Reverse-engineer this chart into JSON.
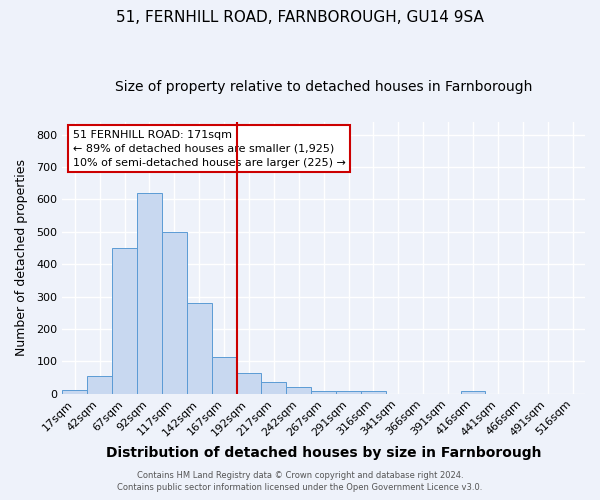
{
  "title": "51, FERNHILL ROAD, FARNBOROUGH, GU14 9SA",
  "subtitle": "Size of property relative to detached houses in Farnborough",
  "xlabel": "Distribution of detached houses by size in Farnborough",
  "ylabel": "Number of detached properties",
  "bin_labels": [
    "17sqm",
    "42sqm",
    "67sqm",
    "92sqm",
    "117sqm",
    "142sqm",
    "167sqm",
    "192sqm",
    "217sqm",
    "242sqm",
    "267sqm",
    "291sqm",
    "316sqm",
    "341sqm",
    "366sqm",
    "391sqm",
    "416sqm",
    "441sqm",
    "466sqm",
    "491sqm",
    "516sqm"
  ],
  "bar_heights": [
    12,
    55,
    450,
    620,
    500,
    280,
    115,
    65,
    38,
    22,
    10,
    8,
    8,
    0,
    0,
    0,
    8,
    0,
    0,
    0,
    0
  ],
  "bar_color": "#c8d8f0",
  "bar_edge_color": "#5b9bd5",
  "vline_color": "#cc0000",
  "annotation_lines": [
    "51 FERNHILL ROAD: 171sqm",
    "← 89% of detached houses are smaller (1,925)",
    "10% of semi-detached houses are larger (225) →"
  ],
  "annotation_box_color": "#ffffff",
  "annotation_box_edge_color": "#cc0000",
  "ylim": [
    0,
    840
  ],
  "yticks": [
    0,
    100,
    200,
    300,
    400,
    500,
    600,
    700,
    800
  ],
  "footnote1": "Contains HM Land Registry data © Crown copyright and database right 2024.",
  "footnote2": "Contains public sector information licensed under the Open Government Licence v3.0.",
  "bg_color": "#eef2fa",
  "grid_color": "#ffffff",
  "title_fontsize": 11,
  "subtitle_fontsize": 10,
  "xlabel_fontsize": 10,
  "ylabel_fontsize": 9,
  "tick_fontsize": 8,
  "annotation_fontsize": 8,
  "footnote_fontsize": 6
}
